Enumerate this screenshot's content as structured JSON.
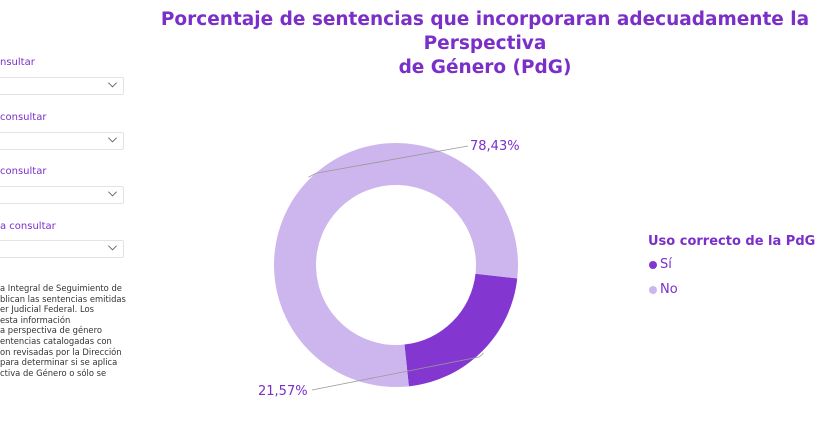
{
  "filters": [
    {
      "label": "nsultar"
    },
    {
      "label": "consultar"
    },
    {
      "label": "consultar"
    },
    {
      "label": "a consultar"
    }
  ],
  "description": "a Integral de Seguimiento de\nblican las sentencias emitidas\ner Judicial Federal. Los\nesta información\na perspectiva de género\nentencias catalogadas con\non revisadas por la Dirección\npara determinar si se aplica\nctiva de Género o sólo se",
  "chart_data": {
    "type": "pie",
    "style": "donut",
    "title": "Porcentaje de sentencias que incorporaran adecuadamente la Perspectiva de Género (PdG)",
    "title_line1": "Porcentaje de sentencias que incorporaran adecuadamente la Perspectiva",
    "title_line2": "de Género (PdG)",
    "legend_title": "Uso correcto de la PdG",
    "legend_position": "right",
    "categories": [
      "Sí",
      "No"
    ],
    "values": [
      21.57,
      78.43
    ],
    "data_labels": [
      "21,57%",
      "78,43%"
    ],
    "colors": [
      "#8437D0",
      "#CDB6EE"
    ]
  }
}
